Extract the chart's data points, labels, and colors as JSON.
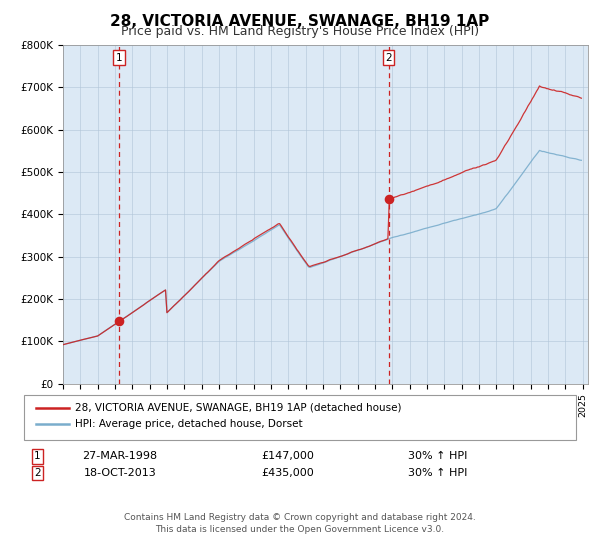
{
  "title": "28, VICTORIA AVENUE, SWANAGE, BH19 1AP",
  "subtitle": "Price paid vs. HM Land Registry's House Price Index (HPI)",
  "legend_line1": "28, VICTORIA AVENUE, SWANAGE, BH19 1AP (detached house)",
  "legend_line2": "HPI: Average price, detached house, Dorset",
  "footer1": "Contains HM Land Registry data © Crown copyright and database right 2024.",
  "footer2": "This data is licensed under the Open Government Licence v3.0.",
  "sale1_date": "27-MAR-1998",
  "sale1_price": "£147,000",
  "sale1_hpi": "30% ↑ HPI",
  "sale2_date": "18-OCT-2013",
  "sale2_price": "£435,000",
  "sale2_hpi": "30% ↑ HPI",
  "vline1_year": 1998.23,
  "vline2_year": 2013.8,
  "dot1_year": 1998.23,
  "dot1_value": 147000,
  "dot2_year": 2013.8,
  "dot2_value": 435000,
  "ylim_max": 800000,
  "background_color": "#dce9f5",
  "red_line_color": "#cc2222",
  "blue_line_color": "#7aadcc",
  "vline_color": "#cc2222",
  "grid_color": "#b0c4d8"
}
